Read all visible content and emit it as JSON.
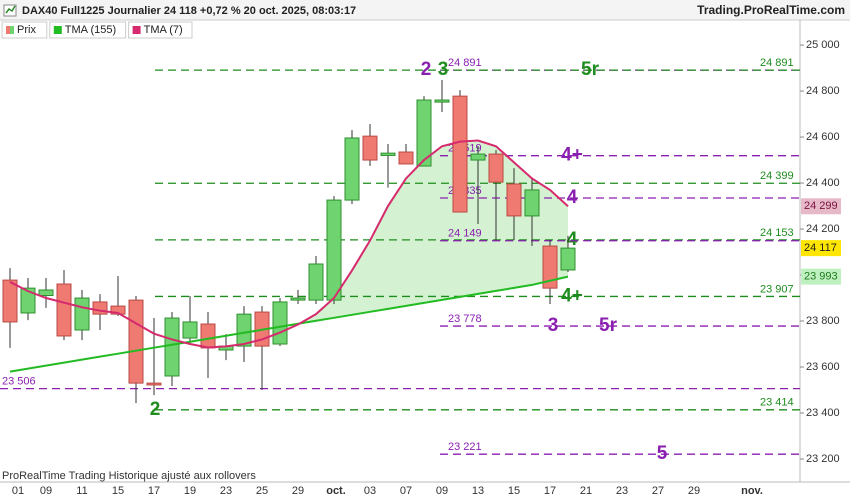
{
  "chart_data": {
    "type": "candlestick",
    "title": "DAX40 Full1225 Journalier 24 118 +0,72 % 20 oct. 2025, 08:03:17",
    "source": "Trading.ProRealTime.com",
    "footer": "ProRealTime Trading  Historique ajusté aux rollovers",
    "price_name": "Prix",
    "price_last_label": "24 117",
    "up_color": "#6fd36f",
    "down_color": "#ef7a72",
    "x_labels": [
      "01",
      "09",
      "11",
      "15",
      "17",
      "19",
      "23",
      "25",
      "29",
      "oct.",
      "03",
      "07",
      "09",
      "13",
      "15",
      "17",
      "21",
      "23",
      "27",
      "29",
      "nov."
    ],
    "open": [
      23978,
      23835,
      23911,
      23961,
      23761,
      23883,
      23865,
      23891,
      23530,
      23561,
      23726,
      23787,
      23674,
      23691,
      23839,
      23700,
      23891,
      23891,
      23891,
      24326,
      24604,
      24520,
      24535,
      24474,
      24752,
      24778,
      24500,
      24526,
      24396,
      24257,
      24126,
      24022
    ],
    "high": [
      24030,
      23987,
      23987,
      24022,
      23935,
      23917,
      23996,
      23909,
      23813,
      23839,
      23909,
      23839,
      23743,
      23865,
      23865,
      23900,
      23935,
      24083,
      24343,
      24630,
      24657,
      24570,
      24570,
      24778,
      24848,
      24804,
      24561,
      24543,
      24465,
      24422,
      24152,
      24170
    ],
    "low": [
      23683,
      23804,
      23857,
      23717,
      23717,
      23761,
      23822,
      23443,
      23478,
      23517,
      23700,
      23552,
      23630,
      23622,
      23500,
      23691,
      23874,
      23874,
      23874,
      24309,
      24474,
      24380,
      24483,
      24474,
      24709,
      24274,
      24222,
      24152,
      24152,
      24126,
      23874,
      24013
    ],
    "close": [
      23796,
      23943,
      23935,
      23735,
      23900,
      23830,
      23830,
      23530,
      23522,
      23813,
      23796,
      23683,
      23691,
      23830,
      23691,
      23883,
      23900,
      24048,
      24326,
      24596,
      24500,
      24530,
      24483,
      24761,
      24761,
      24274,
      24526,
      24404,
      24257,
      24370,
      23943,
      24117
    ],
    "series": [
      {
        "name": "TMA (155)",
        "color": "#22bb22",
        "last_label": "23 993",
        "values": [
          23580,
          23593,
          23606,
          23619,
          23632,
          23645,
          23658,
          23671,
          23684,
          23697,
          23710,
          23723,
          23736,
          23749,
          23762,
          23775,
          23788,
          23801,
          23814,
          23827,
          23840,
          23853,
          23866,
          23879,
          23892,
          23905,
          23918,
          23931,
          23944,
          23957,
          23975,
          23993
        ]
      },
      {
        "name": "TMA (7)",
        "color": "#d62a6e",
        "last_label": "24 299",
        "values": [
          23970,
          23930,
          23900,
          23880,
          23860,
          23845,
          23835,
          23790,
          23745,
          23720,
          23700,
          23685,
          23690,
          23700,
          23720,
          23750,
          23785,
          23830,
          23900,
          24020,
          24150,
          24300,
          24420,
          24500,
          24560,
          24580,
          24585,
          24560,
          24490,
          24420,
          24370,
          24299
        ]
      }
    ],
    "ylim": [
      23100,
      25109
    ],
    "yticks": [
      {
        "value": 25000,
        "label": "25 000"
      },
      {
        "value": 24800,
        "label": "24 800"
      },
      {
        "value": 24600,
        "label": "24 600"
      },
      {
        "value": 24400,
        "label": "24 400"
      },
      {
        "value": 24200,
        "label": "24 200"
      },
      {
        "value": 24000,
        "label": "24 000"
      },
      {
        "value": 23800,
        "label": "23 800"
      },
      {
        "value": 23600,
        "label": "23 600"
      },
      {
        "value": 23400,
        "label": "23 400"
      },
      {
        "value": 23200,
        "label": "23 200"
      }
    ],
    "levels": [
      {
        "value": 24891,
        "label": "24 891",
        "color": "#8a1fb0",
        "label_position": "middle",
        "tags": [
          "2"
        ]
      },
      {
        "value": 24891,
        "label": "24 891",
        "color": "#1e8c1e",
        "label_position": "right",
        "tags": [
          "3",
          "5r"
        ]
      },
      {
        "value": 24519,
        "label": "24 519",
        "color": "#8a1fb0",
        "label_position": "middle",
        "tags": [
          "4+"
        ]
      },
      {
        "value": 24399,
        "label": "24 399",
        "color": "#1e8c1e",
        "label_position": "right",
        "tags": []
      },
      {
        "value": 24335,
        "label": "24 335",
        "color": "#8a1fb0",
        "label_position": "middle",
        "tags": [
          "4"
        ]
      },
      {
        "value": 24153,
        "label": "24 153",
        "color": "#1e8c1e",
        "label_position": "right",
        "tags": [
          "4"
        ]
      },
      {
        "value": 24149,
        "label": "24 149",
        "color": "#8a1fb0",
        "label_position": "middle",
        "tags": []
      },
      {
        "value": 23907,
        "label": "23 907",
        "color": "#1e8c1e",
        "label_position": "right",
        "tags": [
          "4+"
        ]
      },
      {
        "value": 23778,
        "label": "23 778",
        "color": "#8a1fb0",
        "label_position": "middle",
        "tags": [
          "3",
          "5r"
        ]
      },
      {
        "value": 23506,
        "label": "23 506",
        "color": "#8a1fb0",
        "label_position": "left",
        "tags": []
      },
      {
        "value": 23414,
        "label": "23 414",
        "color": "#1e8c1e",
        "label_position": "right",
        "tags": [
          "2"
        ]
      },
      {
        "value": 23221,
        "label": "23 221",
        "color": "#8a1fb0",
        "label_position": "middle",
        "tags": [
          "5"
        ]
      }
    ]
  }
}
